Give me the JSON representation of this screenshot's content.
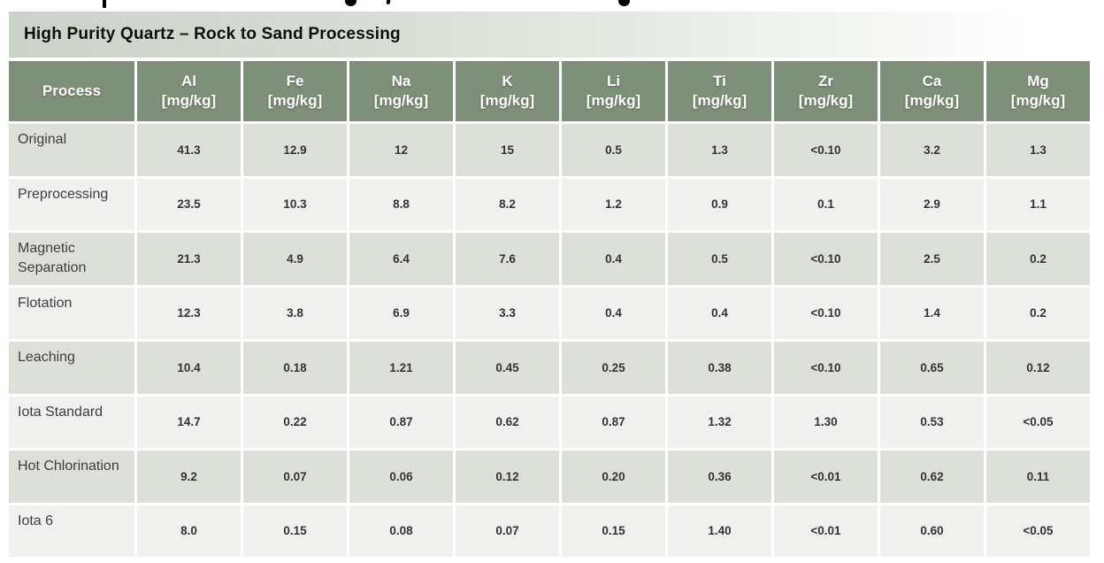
{
  "table": {
    "title": "High Purity Quartz – Rock to Sand Processing",
    "columns": [
      {
        "label": "Process",
        "unit": ""
      },
      {
        "label": "Al",
        "unit": "[mg/kg]"
      },
      {
        "label": "Fe",
        "unit": "[mg/kg]"
      },
      {
        "label": "Na",
        "unit": "[mg/kg]"
      },
      {
        "label": "K",
        "unit": "[mg/kg]"
      },
      {
        "label": "Li",
        "unit": "[mg/kg]"
      },
      {
        "label": "Ti",
        "unit": "[mg/kg]"
      },
      {
        "label": "Zr",
        "unit": "[mg/kg]"
      },
      {
        "label": "Ca",
        "unit": "[mg/kg]"
      },
      {
        "label": "Mg",
        "unit": "[mg/kg]"
      }
    ],
    "rows": [
      {
        "process": "Original",
        "values": [
          "41.3",
          "12.9",
          "12",
          "15",
          "0.5",
          "1.3",
          "<0.10",
          "3.2",
          "1.3"
        ]
      },
      {
        "process": "Preprocessing",
        "values": [
          "23.5",
          "10.3",
          "8.8",
          "8.2",
          "1.2",
          "0.9",
          "0.1",
          "2.9",
          "1.1"
        ]
      },
      {
        "process": "Magnetic Separation",
        "values": [
          "21.3",
          "4.9",
          "6.4",
          "7.6",
          "0.4",
          "0.5",
          "<0.10",
          "2.5",
          "0.2"
        ]
      },
      {
        "process": "Flotation",
        "values": [
          "12.3",
          "3.8",
          "6.9",
          "3.3",
          "0.4",
          "0.4",
          "<0.10",
          "1.4",
          "0.2"
        ]
      },
      {
        "process": "Leaching",
        "values": [
          "10.4",
          "0.18",
          "1.21",
          "0.45",
          "0.25",
          "0.38",
          "<0.10",
          "0.65",
          "0.12"
        ]
      },
      {
        "process": "Iota Standard",
        "values": [
          "14.7",
          "0.22",
          "0.87",
          "0.62",
          "0.87",
          "1.32",
          "1.30",
          "0.53",
          "<0.05"
        ]
      },
      {
        "process": "Hot Chlorination",
        "values": [
          "9.2",
          "0.07",
          "0.06",
          "0.12",
          "0.20",
          "0.36",
          "<0.01",
          "0.62",
          "0.11"
        ]
      },
      {
        "process": "Iota 6",
        "values": [
          "8.0",
          "0.15",
          "0.08",
          "0.07",
          "0.15",
          "1.40",
          "<0.01",
          "0.60",
          "<0.05"
        ]
      }
    ],
    "colors": {
      "header_bg": "#7e8f7a",
      "header_text": "#ffffff",
      "title_band_left": "#cbd2c7",
      "title_band_right": "#ffffff",
      "row_odd_bg": "#dce0d9",
      "row_even_bg": "#f0f1ee",
      "body_text": "#3d3d3d",
      "grid_lines": "#ffffff"
    }
  }
}
